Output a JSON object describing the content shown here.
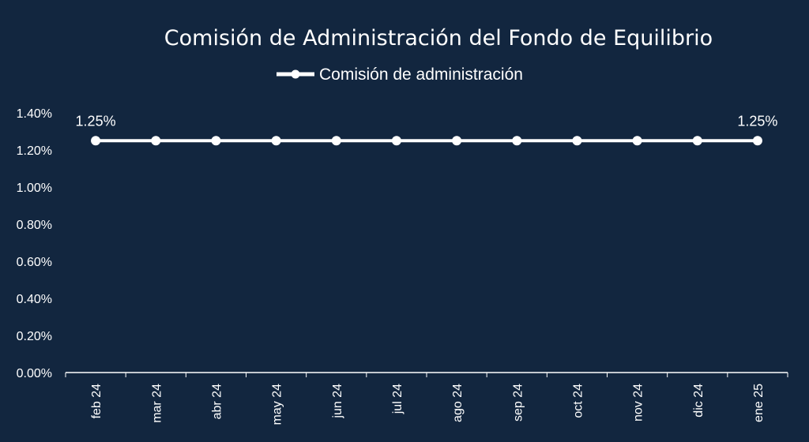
{
  "chart_data": {
    "type": "line",
    "title": "Comisión de Administración del Fondo de Equilibrio",
    "legend_position": "top",
    "categories": [
      "feb 24",
      "mar 24",
      "abr 24",
      "may 24",
      "jun 24",
      "jul 24",
      "ago 24",
      "sep 24",
      "oct 24",
      "nov 24",
      "dic 24",
      "ene 25"
    ],
    "series": [
      {
        "name": "Comisión de administración",
        "values": [
          1.25,
          1.25,
          1.25,
          1.25,
          1.25,
          1.25,
          1.25,
          1.25,
          1.25,
          1.25,
          1.25,
          1.25
        ],
        "data_labels": [
          {
            "index": 0,
            "text": "1.25%"
          },
          {
            "index": 11,
            "text": "1.25%"
          }
        ]
      }
    ],
    "yticks": [
      "0.00%",
      "0.20%",
      "0.40%",
      "0.60%",
      "0.80%",
      "1.00%",
      "1.20%",
      "1.40%"
    ],
    "ylim": [
      0,
      1.4
    ],
    "grid": false,
    "colors": {
      "background": "#12263f",
      "series": "#ffffff",
      "axis": "#ffffff"
    }
  }
}
